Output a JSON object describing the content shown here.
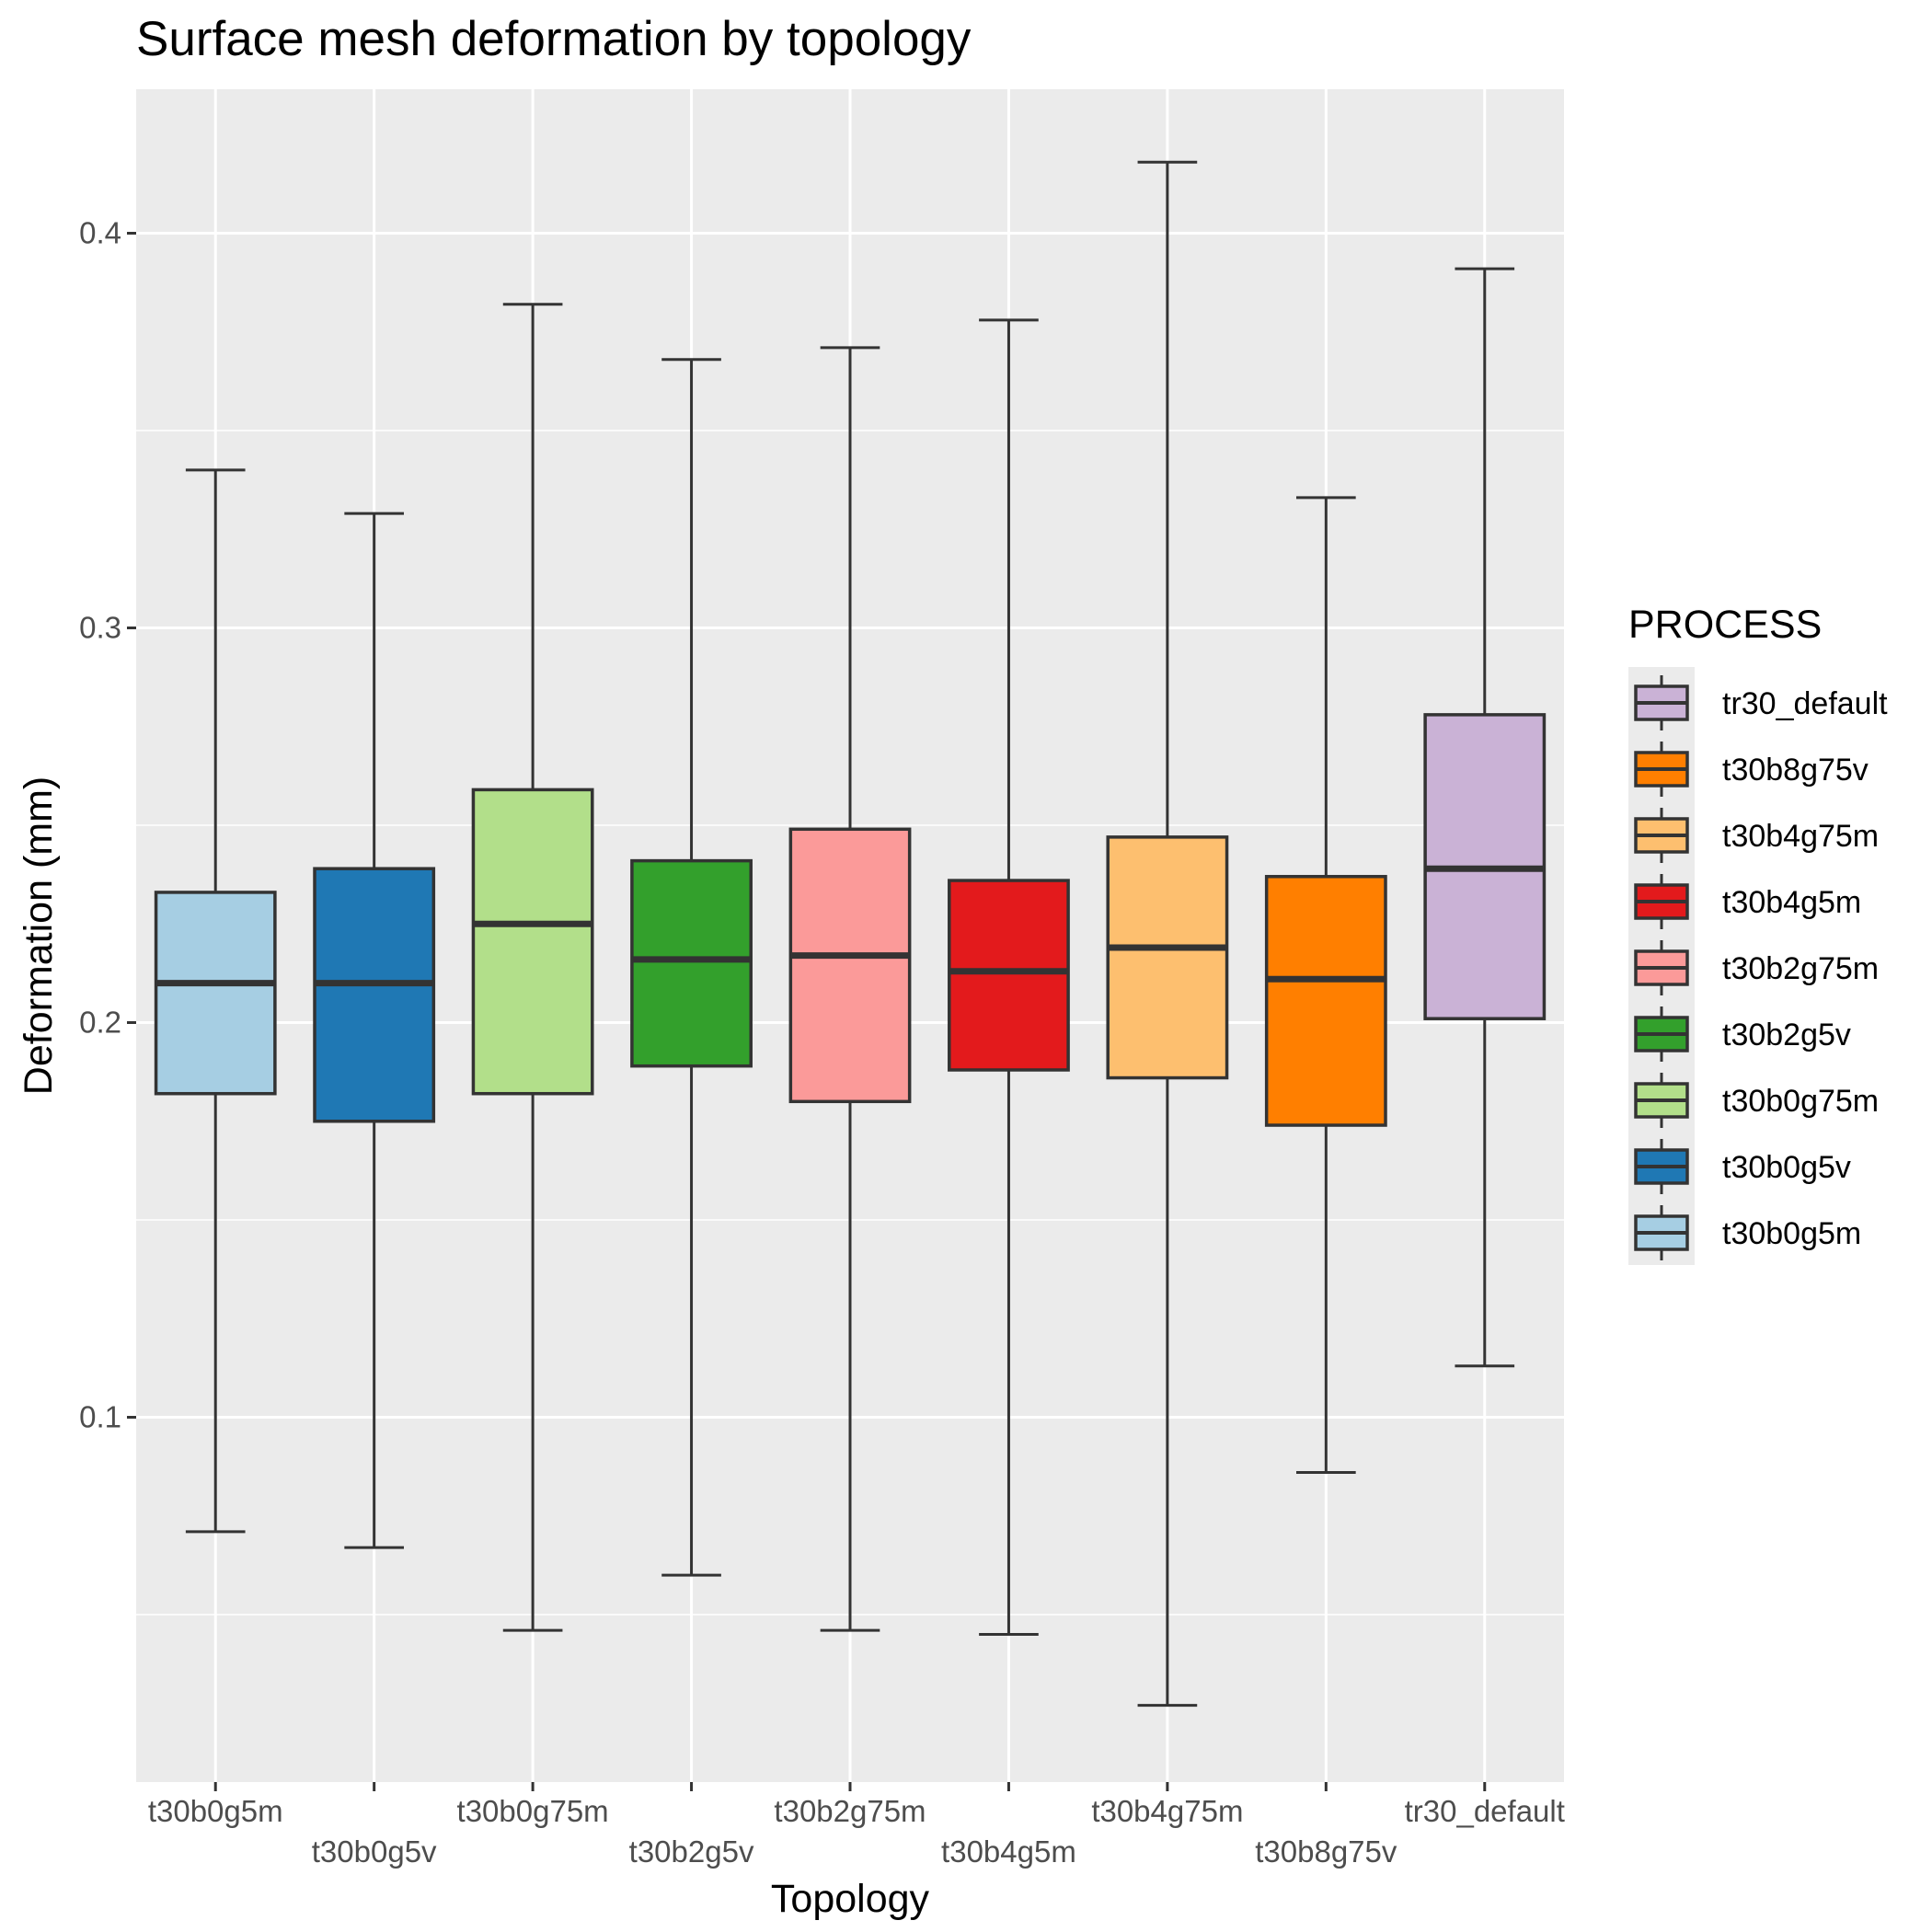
{
  "chart_data": {
    "type": "boxplot",
    "title": "Surface mesh deformation by topology",
    "xlabel": "Topology",
    "ylabel": "Deformation (mm)",
    "ylim": [
      0.03,
      0.43
    ],
    "yticks": [
      0.1,
      0.2,
      0.3,
      0.4
    ],
    "ytick_labels": [
      "0.1",
      "0.2",
      "0.3",
      "0.4"
    ],
    "grid": true,
    "legend_title": "PROCESS",
    "legend_position": "right",
    "categories": [
      "t30b0g5m",
      "t30b0g5v",
      "t30b0g75m",
      "t30b2g5v",
      "t30b2g75m",
      "t30b4g5m",
      "t30b4g75m",
      "t30b8g75v",
      "tr30_default"
    ],
    "boxes": [
      {
        "name": "t30b0g5m",
        "color": "#a6cee3",
        "whisker_low": 0.071,
        "q1": 0.182,
        "median": 0.21,
        "q3": 0.233,
        "whisker_high": 0.34
      },
      {
        "name": "t30b0g5v",
        "color": "#1f78b4",
        "whisker_low": 0.067,
        "q1": 0.175,
        "median": 0.21,
        "q3": 0.239,
        "whisker_high": 0.329
      },
      {
        "name": "t30b0g75m",
        "color": "#b2df8a",
        "whisker_low": 0.046,
        "q1": 0.182,
        "median": 0.225,
        "q3": 0.259,
        "whisker_high": 0.382
      },
      {
        "name": "t30b2g5v",
        "color": "#33a02c",
        "whisker_low": 0.06,
        "q1": 0.189,
        "median": 0.216,
        "q3": 0.241,
        "whisker_high": 0.368
      },
      {
        "name": "t30b2g75m",
        "color": "#fb9a99",
        "whisker_low": 0.046,
        "q1": 0.18,
        "median": 0.217,
        "q3": 0.249,
        "whisker_high": 0.371
      },
      {
        "name": "t30b4g5m",
        "color": "#e31a1c",
        "whisker_low": 0.045,
        "q1": 0.188,
        "median": 0.213,
        "q3": 0.236,
        "whisker_high": 0.378
      },
      {
        "name": "t30b4g75m",
        "color": "#fdbf6f",
        "whisker_low": 0.027,
        "q1": 0.186,
        "median": 0.219,
        "q3": 0.247,
        "whisker_high": 0.418
      },
      {
        "name": "t30b8g75v",
        "color": "#ff7f00",
        "whisker_low": 0.086,
        "q1": 0.174,
        "median": 0.211,
        "q3": 0.237,
        "whisker_high": 0.333
      },
      {
        "name": "tr30_default",
        "color": "#cab2d6",
        "whisker_low": 0.113,
        "q1": 0.201,
        "median": 0.239,
        "q3": 0.278,
        "whisker_high": 0.391
      }
    ],
    "legend_order": [
      "tr30_default",
      "t30b8g75v",
      "t30b4g75m",
      "t30b4g5m",
      "t30b2g75m",
      "t30b2g5v",
      "t30b0g75m",
      "t30b0g5v",
      "t30b0g5m"
    ]
  }
}
